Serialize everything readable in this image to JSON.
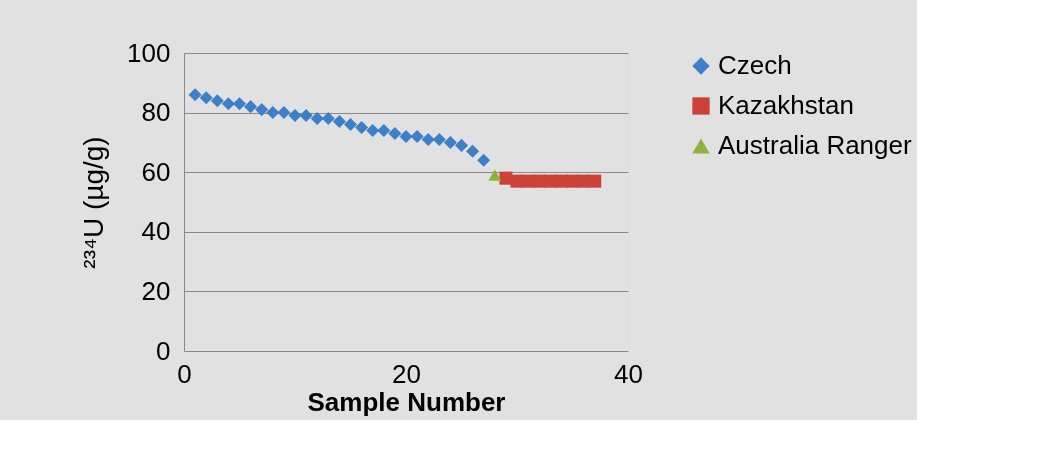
{
  "chart_data": {
    "type": "scatter",
    "xlabel": "Sample Number",
    "ylabel": "²³⁴U (µg/g)",
    "xlim": [
      0,
      40
    ],
    "xticks": [
      0,
      20,
      40
    ],
    "ylim": [
      0,
      100
    ],
    "yticks": [
      0,
      20,
      40,
      60,
      80,
      100
    ],
    "grid": "y",
    "legend": "right",
    "series": [
      {
        "name": "Czech",
        "color": "#3d7fc9",
        "marker": "diamond",
        "x": [
          1,
          2,
          3,
          4,
          5,
          6,
          7,
          8,
          9,
          10,
          11,
          12,
          13,
          14,
          15,
          16,
          17,
          18,
          19,
          20,
          21,
          22,
          23,
          24,
          25,
          26,
          27
        ],
        "values": [
          86,
          85,
          84,
          83,
          83,
          82,
          81,
          80,
          80,
          79,
          79,
          78,
          78,
          77,
          76,
          75,
          74,
          74,
          73,
          72,
          72,
          71,
          71,
          70,
          69,
          67,
          64
        ]
      },
      {
        "name": "Kazakhstan",
        "color": "#cc4238",
        "marker": "square",
        "x": [
          29,
          30,
          31,
          32,
          33,
          34,
          35,
          36,
          37
        ],
        "values": [
          58,
          57,
          57,
          57,
          57,
          57,
          57,
          57,
          57
        ]
      },
      {
        "name": "Australia Ranger",
        "color": "#8db33a",
        "marker": "triangle",
        "x": [
          28
        ],
        "values": [
          59
        ]
      }
    ]
  }
}
